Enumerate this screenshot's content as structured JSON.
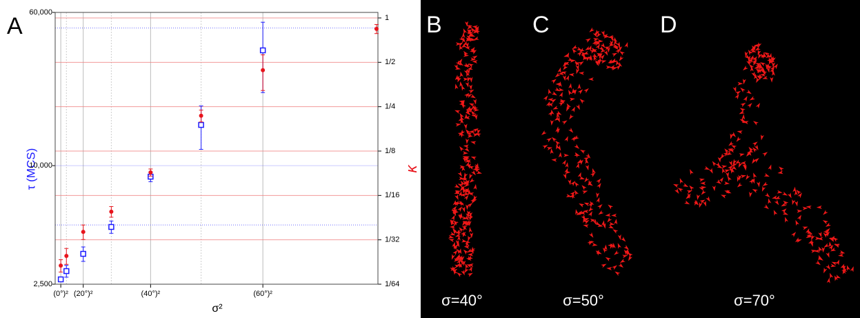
{
  "chart_data": {
    "type": "scatter",
    "panel_label": "A",
    "xlabel": "σ²",
    "ylabel": "τ (MCS)",
    "y2label": "κ",
    "xlim": [
      -100,
      5650
    ],
    "xticks": [
      {
        "value": 0,
        "label": "(0°)²"
      },
      {
        "value": 400,
        "label": "(20°)²"
      },
      {
        "value": 1600,
        "label": "(40°)²"
      },
      {
        "value": 3600,
        "label": "(60°)²"
      }
    ],
    "xgrid_minor": [
      100,
      900,
      2500
    ],
    "ylim": [
      2500,
      60000
    ],
    "ylog": true,
    "yticks": [
      {
        "value": 2500,
        "label": "2,500"
      },
      {
        "value": 10000,
        "label": "10,000"
      },
      {
        "value": 60000,
        "label": "60,000"
      }
    ],
    "ygrid": [
      5000,
      10000,
      50000
    ],
    "y2lim": [
      0.015625,
      1.09
    ],
    "y2log": true,
    "y2ticks": [
      1,
      {
        "value": 0.5,
        "label": "1/2"
      },
      {
        "value": 0.25,
        "label": "1/4"
      },
      {
        "value": 0.125,
        "label": "1/8"
      },
      {
        "value": 0.0625,
        "label": "1/16"
      },
      {
        "value": 0.03125,
        "label": "1/32"
      },
      {
        "value": 0.015625,
        "label": "1/64"
      }
    ],
    "series": [
      {
        "color": "#1a1aff",
        "marker": "square",
        "x": [
          0,
          100,
          400,
          900,
          1600,
          2500,
          3600
        ],
        "values": [
          2645,
          2914,
          3565,
          4883,
          8790,
          16100,
          38500
        ],
        "errors": [
          60,
          200,
          300,
          350,
          500,
          4000,
          15000
        ]
      },
      {
        "color": "#e8141c",
        "marker": "circle",
        "axis": "y2",
        "x": [
          0,
          100,
          400,
          900,
          1600,
          2500,
          3600,
          5625
        ],
        "values": [
          0.0209,
          0.0243,
          0.0354,
          0.0485,
          0.0895,
          0.217,
          0.442,
          0.843
        ],
        "errors": [
          0.002,
          0.003,
          0.004,
          0.004,
          0.005,
          0.02,
          0.12,
          0.06
        ]
      }
    ]
  },
  "panels": [
    {
      "letter": "B",
      "caption": "σ=40°"
    },
    {
      "letter": "C",
      "caption": "σ=50°"
    },
    {
      "letter": "D",
      "caption": "σ=70°"
    }
  ]
}
